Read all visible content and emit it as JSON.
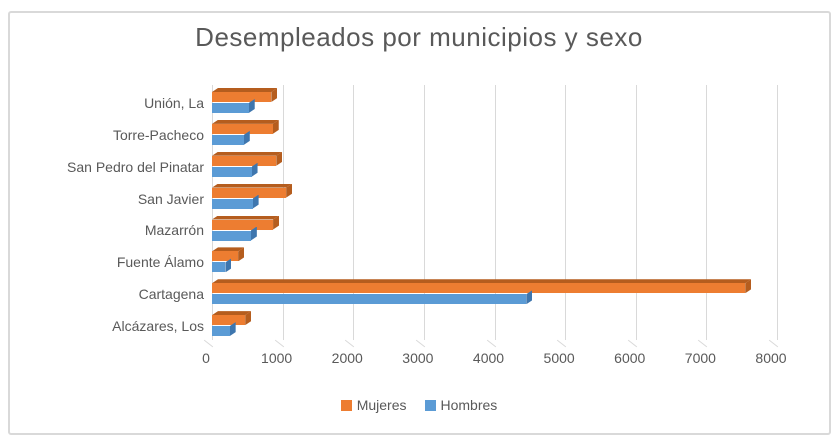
{
  "chart_data": {
    "type": "bar",
    "orientation": "horizontal",
    "title": "Desempleados por municipios y sexo",
    "categories": [
      "Unión, La",
      "Torre-Pacheco",
      "San Pedro del Pinatar",
      "San Javier",
      "Mazarrón",
      "Fuente Álamo",
      "Cartagena",
      "Alcázares, Los"
    ],
    "series": [
      {
        "name": "Mujeres",
        "color": "#ED7D31",
        "color_dark": "#B55D1E",
        "values": [
          840,
          860,
          910,
          1050,
          865,
          370,
          7550,
          470
        ]
      },
      {
        "name": "Hombres",
        "color": "#5B9BD5",
        "color_dark": "#3E76AE",
        "values": [
          520,
          450,
          560,
          575,
          550,
          190,
          4450,
          250
        ]
      }
    ],
    "x_axis": {
      "min": 0,
      "max": 8000,
      "tick_step": 1000,
      "ticks": [
        "0",
        "1000",
        "2000",
        "3000",
        "4000",
        "5000",
        "6000",
        "7000",
        "8000"
      ]
    },
    "legend_position": "bottom",
    "grid": true,
    "effect": "3d-bevel",
    "style": {
      "text_color": "#595959",
      "grid_color": "#D9D9D9",
      "frame_color": "#D9D9D9",
      "background": "#FFFFFF"
    }
  }
}
